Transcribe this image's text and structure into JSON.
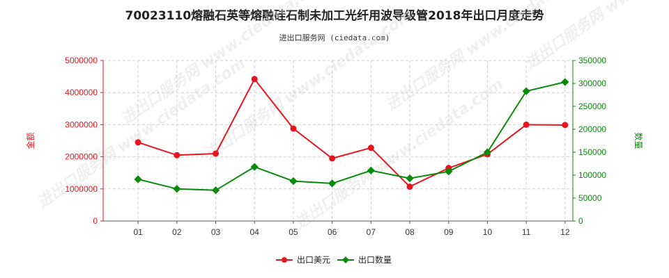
{
  "title": "70023110熔融石英等熔融硅石制未加工光纤用波导级管2018年出口月度走势",
  "subtitle": "进出口服务网 (ciedata.com)",
  "watermark_text": "进出口服务网 www.ciedata.com",
  "chart_data": {
    "type": "line",
    "title": "70023110熔融石英等熔融硅石制未加工光纤用波导级管2018年出口月度走势",
    "subtitle": "进出口服务网 (ciedata.com)",
    "categories": [
      "01",
      "02",
      "03",
      "04",
      "05",
      "06",
      "07",
      "08",
      "09",
      "10",
      "11",
      "12"
    ],
    "left_axis": {
      "label": "金额",
      "ylim": [
        0,
        5000000
      ],
      "ticks": [
        "0",
        "1000000",
        "2000000",
        "3000000",
        "4000000",
        "5000000"
      ],
      "color": "#e8141e"
    },
    "right_axis": {
      "label": "数量",
      "ylim": [
        0,
        350000
      ],
      "ticks": [
        "0",
        "50000",
        "100000",
        "150000",
        "200000",
        "250000",
        "300000",
        "350000"
      ],
      "color": "#0a8a0a"
    },
    "series": [
      {
        "name": "出口美元",
        "axis": "left",
        "color": "#e8141e",
        "values": [
          2450000,
          2050000,
          2100000,
          4420000,
          2880000,
          1950000,
          2280000,
          1070000,
          1650000,
          2080000,
          3000000,
          2990000
        ]
      },
      {
        "name": "出口数量",
        "axis": "right",
        "color": "#0a8a0a",
        "values": [
          91000,
          70000,
          67000,
          118000,
          87000,
          82000,
          110000,
          93000,
          108000,
          150000,
          283000,
          303000
        ]
      }
    ],
    "legend_position": "bottom",
    "grid": true
  }
}
